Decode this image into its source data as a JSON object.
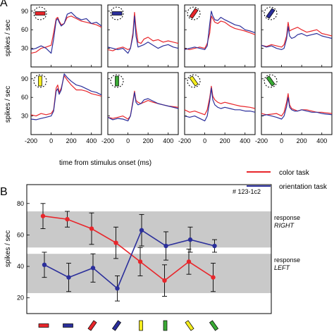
{
  "panel_labels": {
    "a": "A",
    "b": "B"
  },
  "colors": {
    "red": "#e8262b",
    "blue": "#2b2f9b",
    "yellow": "#f4ec1e",
    "green": "#3aaa35",
    "band": "#c9c9c9"
  },
  "chart_data": [
    {
      "type": "line",
      "panel": "A",
      "ylabel": "spikes / sec",
      "xlabel": "time from stimulus onset (ms)",
      "xlim": [
        -200,
        500
      ],
      "ylim": [
        0,
        100
      ],
      "x_ticks": [
        -200,
        0,
        200,
        400
      ],
      "y_ticks": [
        30,
        60,
        90
      ],
      "grid": false,
      "stimuli": [
        {
          "icon": "red-horizontal-bar-icon",
          "color": "red",
          "angle": 0
        },
        {
          "icon": "blue-horizontal-bar-icon",
          "color": "blue",
          "angle": 0
        },
        {
          "icon": "red-oblique-bar-icon",
          "color": "red",
          "angle": -55
        },
        {
          "icon": "blue-oblique-bar-icon",
          "color": "blue",
          "angle": -55
        },
        {
          "icon": "yellow-vertical-bar-icon",
          "color": "yellow",
          "angle": 90
        },
        {
          "icon": "green-vertical-bar-icon",
          "color": "green",
          "angle": 90
        },
        {
          "icon": "yellow-oblique-bar-icon",
          "color": "yellow",
          "angle": 55
        },
        {
          "icon": "green-oblique-bar-icon",
          "color": "green",
          "angle": 55
        }
      ],
      "x": [
        -200,
        -150,
        -100,
        -50,
        0,
        25,
        50,
        65,
        80,
        100,
        130,
        160,
        200,
        250,
        300,
        350,
        400,
        450,
        500
      ],
      "panels": [
        {
          "series": [
            {
              "name": "color task",
              "values": [
                22,
                24,
                30,
                32,
                35,
                55,
                78,
                80,
                74,
                68,
                70,
                80,
                82,
                78,
                74,
                72,
                70,
                68,
                64
              ]
            },
            {
              "name": "orientation task",
              "values": [
                28,
                30,
                34,
                30,
                22,
                45,
                75,
                78,
                72,
                66,
                70,
                85,
                88,
                80,
                76,
                78,
                70,
                72,
                66
              ]
            }
          ]
        },
        {
          "series": [
            {
              "name": "color task",
              "values": [
                28,
                26,
                30,
                32,
                28,
                30,
                55,
                88,
                62,
                40,
                38,
                45,
                48,
                42,
                44,
                40,
                42,
                40,
                38
              ]
            },
            {
              "name": "orientation task",
              "values": [
                32,
                30,
                28,
                30,
                22,
                30,
                50,
                82,
                50,
                32,
                34,
                36,
                40,
                35,
                30,
                34,
                36,
                32,
                30
              ]
            }
          ]
        },
        {
          "series": [
            {
              "name": "color task",
              "values": [
                30,
                28,
                30,
                32,
                30,
                38,
                55,
                82,
                78,
                72,
                70,
                74,
                72,
                66,
                62,
                60,
                58,
                55,
                52
              ]
            },
            {
              "name": "orientation task",
              "values": [
                28,
                30,
                32,
                30,
                28,
                34,
                70,
                90,
                82,
                76,
                75,
                80,
                76,
                72,
                68,
                66,
                60,
                58,
                55
              ]
            }
          ]
        },
        {
          "series": [
            {
              "name": "color task",
              "values": [
                35,
                33,
                36,
                34,
                32,
                36,
                50,
                72,
                58,
                60,
                62,
                64,
                60,
                56,
                58,
                60,
                54,
                52,
                50
              ]
            },
            {
              "name": "orientation task",
              "values": [
                35,
                32,
                34,
                30,
                28,
                30,
                45,
                65,
                50,
                46,
                48,
                52,
                54,
                50,
                52,
                54,
                50,
                48,
                46
              ]
            }
          ]
        },
        {
          "series": [
            {
              "name": "color task",
              "values": [
                32,
                30,
                34,
                32,
                34,
                40,
                75,
                80,
                68,
                75,
                95,
                88,
                80,
                72,
                72,
                70,
                66,
                64,
                62
              ]
            },
            {
              "name": "orientation task",
              "values": [
                25,
                24,
                26,
                28,
                30,
                38,
                70,
                74,
                65,
                72,
                98,
                92,
                86,
                80,
                78,
                74,
                70,
                68,
                64
              ]
            }
          ]
        },
        {
          "series": [
            {
              "name": "color task",
              "values": [
                28,
                26,
                28,
                30,
                25,
                30,
                55,
                70,
                55,
                52,
                50,
                52,
                55,
                52,
                50,
                48,
                46,
                45,
                44
              ]
            },
            {
              "name": "orientation task",
              "values": [
                28,
                24,
                26,
                25,
                22,
                30,
                52,
                68,
                52,
                48,
                50,
                56,
                58,
                54,
                50,
                48,
                46,
                44,
                42
              ]
            }
          ]
        },
        {
          "series": [
            {
              "name": "color task",
              "values": [
                40,
                36,
                38,
                35,
                32,
                40,
                60,
                78,
                62,
                56,
                52,
                50,
                52,
                50,
                48,
                46,
                45,
                44,
                42
              ]
            },
            {
              "name": "orientation task",
              "values": [
                30,
                28,
                30,
                26,
                22,
                30,
                55,
                75,
                56,
                48,
                44,
                42,
                44,
                42,
                40,
                40,
                38,
                38,
                36
              ]
            }
          ]
        },
        {
          "series": [
            {
              "name": "color task",
              "values": [
                34,
                32,
                33,
                34,
                30,
                36,
                52,
                66,
                48,
                42,
                40,
                38,
                40,
                40,
                38,
                36,
                36,
                35,
                34
              ]
            },
            {
              "name": "orientation task",
              "values": [
                30,
                32,
                30,
                28,
                25,
                30,
                45,
                60,
                44,
                40,
                38,
                38,
                40,
                38,
                36,
                36,
                34,
                33,
                32
              ]
            }
          ]
        }
      ]
    },
    {
      "type": "line",
      "panel": "B",
      "title": "# 123-1c2",
      "ylabel": "spikes / sec",
      "xlabel": "",
      "ylim": [
        10,
        92
      ],
      "y_ticks": [
        20,
        40,
        60,
        80
      ],
      "grid": false,
      "legend_position": "top-right",
      "stimuli": [
        {
          "icon": "red-horizontal-bar-icon",
          "color": "red",
          "angle": 0
        },
        {
          "icon": "blue-horizontal-bar-icon",
          "color": "blue",
          "angle": 0
        },
        {
          "icon": "red-oblique-bar-icon",
          "color": "red",
          "angle": -55
        },
        {
          "icon": "blue-oblique-bar-icon",
          "color": "blue",
          "angle": -55
        },
        {
          "icon": "yellow-vertical-bar-icon",
          "color": "yellow",
          "angle": 90
        },
        {
          "icon": "green-vertical-bar-icon",
          "color": "green",
          "angle": 90
        },
        {
          "icon": "yellow-oblique-bar-icon",
          "color": "yellow",
          "angle": 55
        },
        {
          "icon": "green-oblique-bar-icon",
          "color": "green",
          "angle": 55
        }
      ],
      "bands": [
        {
          "label_line1": "response",
          "label_line2": "RIGHT",
          "range": [
            52,
            75
          ]
        },
        {
          "label_line1": "response",
          "label_line2": "LEFT",
          "range": [
            23,
            48
          ]
        }
      ],
      "series": [
        {
          "name": "color task",
          "color": "red",
          "values": [
            72,
            70,
            64,
            55,
            43,
            31,
            43,
            33
          ],
          "err": [
            8,
            5,
            10,
            10,
            9,
            10,
            8,
            9
          ]
        },
        {
          "name": "orientation task",
          "color": "blue",
          "values": [
            41,
            33,
            39,
            26,
            63,
            53,
            57,
            53
          ],
          "err": [
            8,
            9,
            9,
            8,
            10,
            9,
            8,
            4
          ]
        }
      ]
    }
  ]
}
